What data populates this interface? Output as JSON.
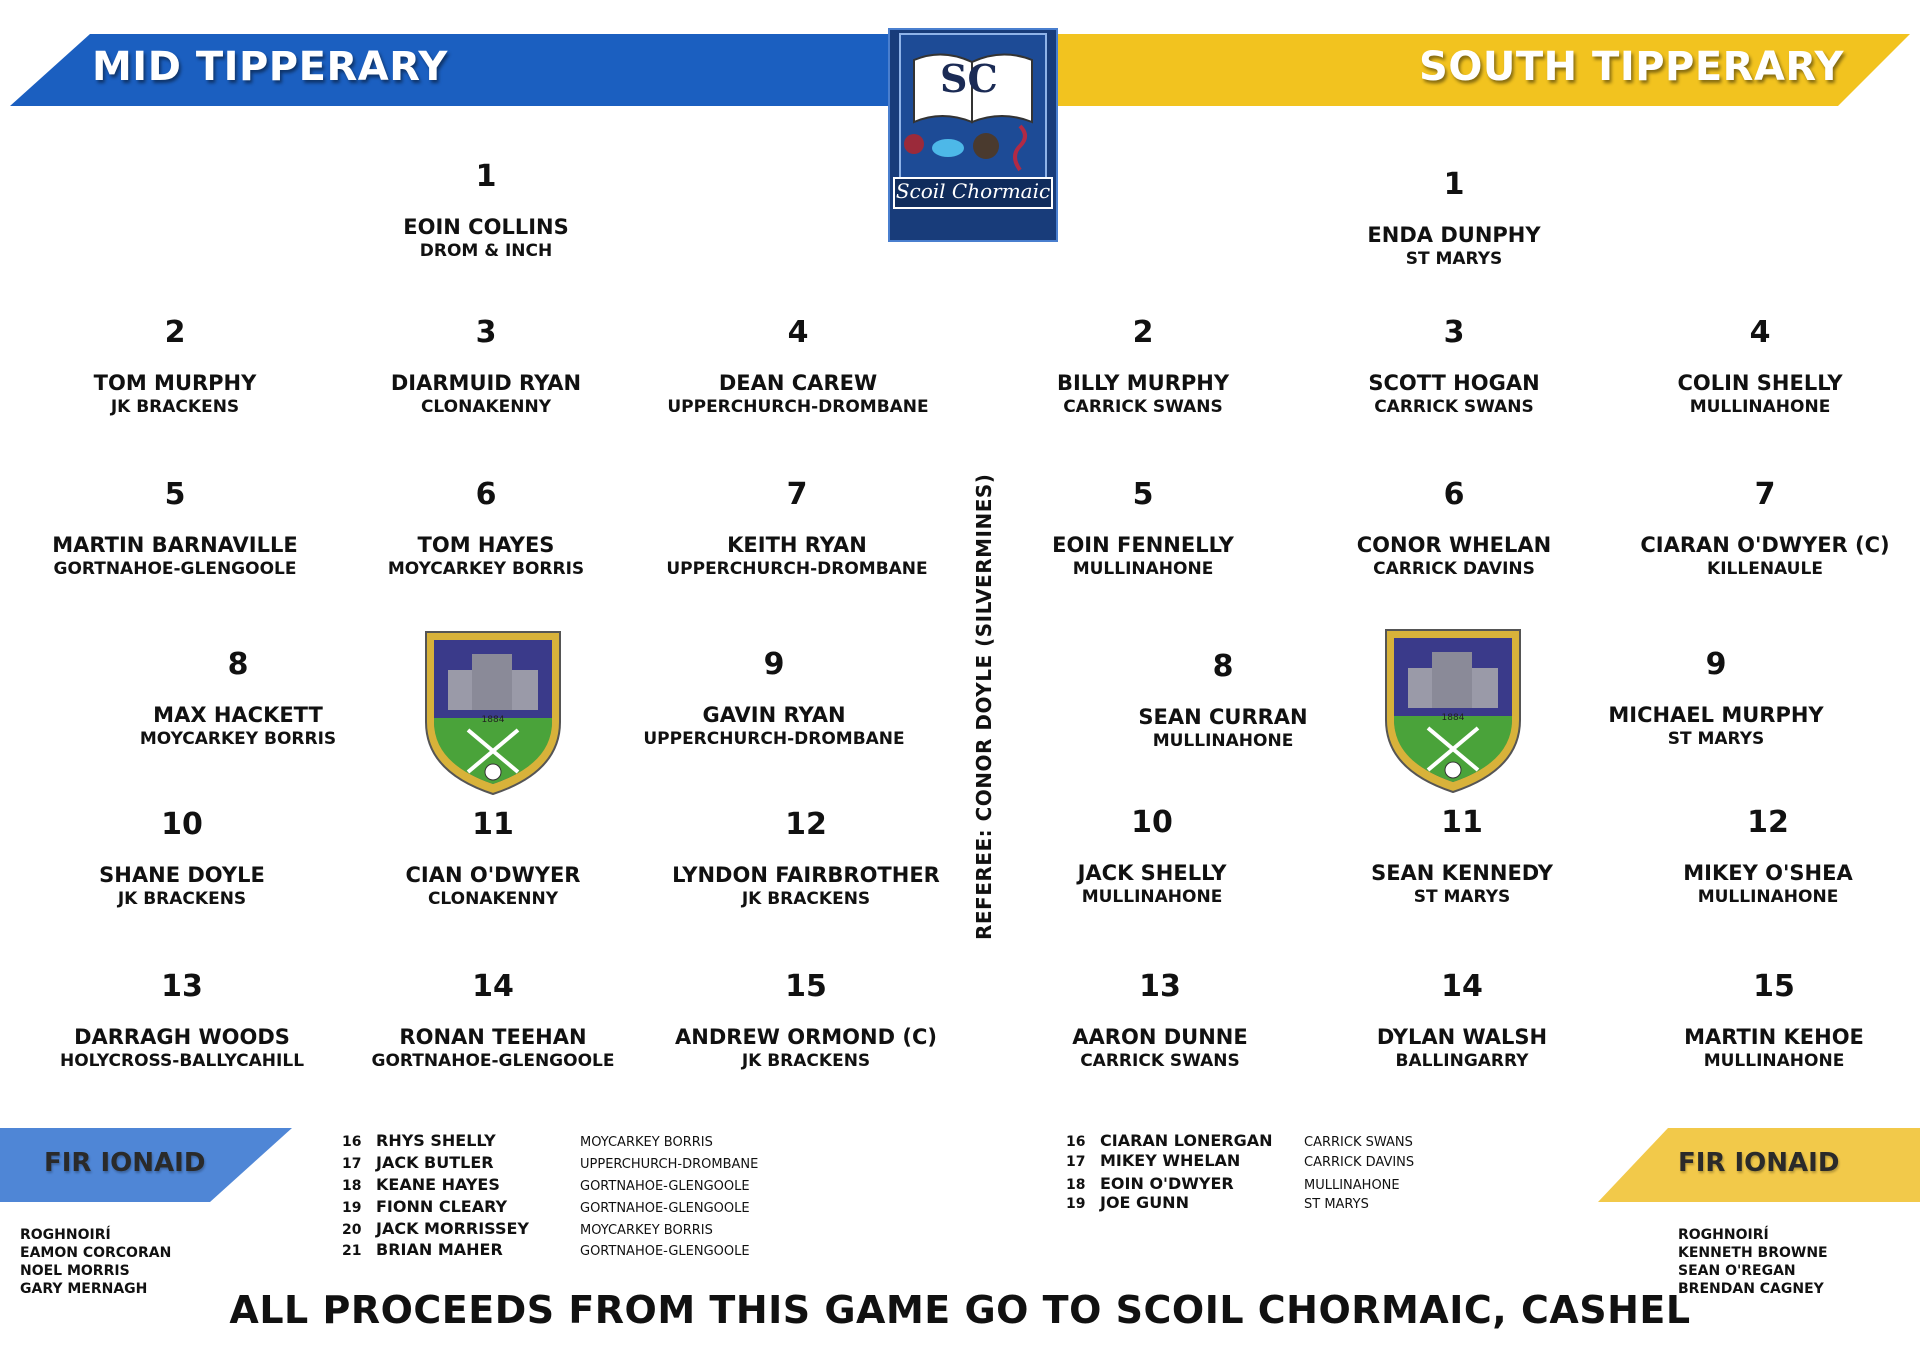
{
  "header": {
    "left_team": "MID TIPPERARY",
    "right_team": "SOUTH TIPPERARY",
    "school_logo_text": "Scoil Chormaic",
    "school_logo_letters": "SC",
    "colors": {
      "blue": "#1b5fc0",
      "yellow": "#f2c31f",
      "navy": "#183c7a"
    }
  },
  "referee": "REFEREE: CONOR DOYLE (SILVERMINES)",
  "crest_year": "1884",
  "mid": {
    "players": [
      {
        "num": "1",
        "name": "EOIN COLLINS",
        "club": "DROM & INCH"
      },
      {
        "num": "2",
        "name": "TOM MURPHY",
        "club": "JK BRACKENS"
      },
      {
        "num": "3",
        "name": "DIARMUID RYAN",
        "club": "CLONAKENNY"
      },
      {
        "num": "4",
        "name": "DEAN CAREW",
        "club": "UPPERCHURCH-DROMBANE"
      },
      {
        "num": "5",
        "name": "MARTIN BARNAVILLE",
        "club": "GORTNAHOE-GLENGOOLE"
      },
      {
        "num": "6",
        "name": "TOM HAYES",
        "club": "MOYCARKEY BORRIS"
      },
      {
        "num": "7",
        "name": "KEITH RYAN",
        "club": "UPPERCHURCH-DROMBANE"
      },
      {
        "num": "8",
        "name": "MAX HACKETT",
        "club": "MOYCARKEY BORRIS"
      },
      {
        "num": "9",
        "name": "GAVIN RYAN",
        "club": "UPPERCHURCH-DROMBANE"
      },
      {
        "num": "10",
        "name": "SHANE DOYLE",
        "club": "JK BRACKENS"
      },
      {
        "num": "11",
        "name": "CIAN O'DWYER",
        "club": "CLONAKENNY"
      },
      {
        "num": "12",
        "name": "LYNDON FAIRBROTHER",
        "club": "JK BRACKENS"
      },
      {
        "num": "13",
        "name": "DARRAGH WOODS",
        "club": "HOLYCROSS-BALLYCAHILL"
      },
      {
        "num": "14",
        "name": "RONAN TEEHAN",
        "club": "GORTNAHOE-GLENGOOLE"
      },
      {
        "num": "15",
        "name": "ANDREW ORMOND (C)",
        "club": "JK BRACKENS"
      }
    ],
    "subs_title": "FIR IONAID",
    "subs": [
      {
        "num": "16",
        "name": "RHYS SHELLY",
        "club": "MOYCARKEY BORRIS"
      },
      {
        "num": "17",
        "name": "JACK BUTLER",
        "club": "UPPERCHURCH-DROMBANE"
      },
      {
        "num": "18",
        "name": "KEANE HAYES",
        "club": "GORTNAHOE-GLENGOOLE"
      },
      {
        "num": "19",
        "name": "FIONN CLEARY",
        "club": "GORTNAHOE-GLENGOOLE"
      },
      {
        "num": "20",
        "name": "JACK MORRISSEY",
        "club": "MOYCARKEY BORRIS"
      },
      {
        "num": "21",
        "name": "BRIAN MAHER",
        "club": "GORTNAHOE-GLENGOOLE"
      }
    ],
    "selectors_title": "ROGHNOIRÍ",
    "selectors": [
      "EAMON CORCORAN",
      "NOEL MORRIS",
      "GARY MERNAGH"
    ]
  },
  "south": {
    "players": [
      {
        "num": "1",
        "name": "ENDA DUNPHY",
        "club": "ST MARYS"
      },
      {
        "num": "2",
        "name": "BILLY MURPHY",
        "club": "CARRICK SWANS"
      },
      {
        "num": "3",
        "name": "SCOTT HOGAN",
        "club": "CARRICK SWANS"
      },
      {
        "num": "4",
        "name": "COLIN SHELLY",
        "club": "MULLINAHONE"
      },
      {
        "num": "5",
        "name": "EOIN FENNELLY",
        "club": "MULLINAHONE"
      },
      {
        "num": "6",
        "name": "CONOR WHELAN",
        "club": "CARRICK DAVINS"
      },
      {
        "num": "7",
        "name": "CIARAN O'DWYER (C)",
        "club": "KILLENAULE"
      },
      {
        "num": "8",
        "name": "SEAN CURRAN",
        "club": "MULLINAHONE"
      },
      {
        "num": "9",
        "name": "MICHAEL MURPHY",
        "club": "ST MARYS"
      },
      {
        "num": "10",
        "name": "JACK SHELLY",
        "club": "MULLINAHONE"
      },
      {
        "num": "11",
        "name": "SEAN KENNEDY",
        "club": "ST MARYS"
      },
      {
        "num": "12",
        "name": "MIKEY O'SHEA",
        "club": "MULLINAHONE"
      },
      {
        "num": "13",
        "name": "AARON DUNNE",
        "club": "CARRICK SWANS"
      },
      {
        "num": "14",
        "name": "DYLAN WALSH",
        "club": "BALLINGARRY"
      },
      {
        "num": "15",
        "name": "MARTIN KEHOE",
        "club": "MULLINAHONE"
      }
    ],
    "subs_title": "FIR IONAID",
    "subs": [
      {
        "num": "16",
        "name": "CIARAN LONERGAN",
        "club": "CARRICK SWANS"
      },
      {
        "num": "17",
        "name": "MIKEY WHELAN",
        "club": "CARRICK DAVINS"
      },
      {
        "num": "18",
        "name": "EOIN O'DWYER",
        "club": "MULLINAHONE"
      },
      {
        "num": "19",
        "name": "JOE GUNN",
        "club": "ST MARYS"
      }
    ],
    "selectors_title": "ROGHNOIRÍ",
    "selectors": [
      "KENNETH BROWNE",
      "SEAN O'REGAN",
      "BRENDAN CAGNEY"
    ]
  },
  "footer": "ALL PROCEEDS FROM THIS GAME GO TO SCOIL CHORMAIC, CASHEL"
}
